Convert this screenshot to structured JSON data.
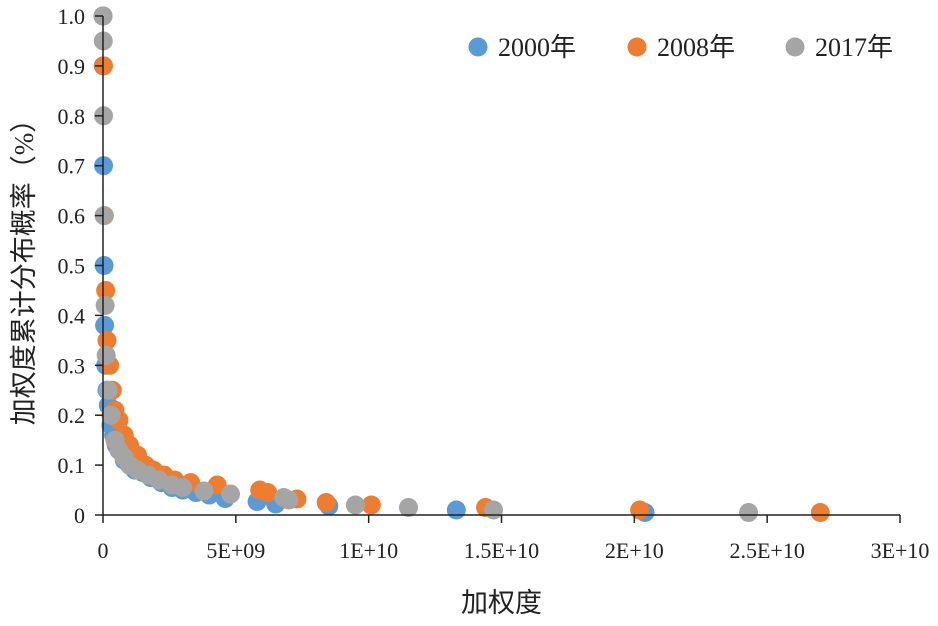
{
  "chart_data": {
    "type": "scatter",
    "xlabel": "加权度",
    "ylabel": "加权度累计分布概率（%）",
    "xlim": [
      0,
      30000000000
    ],
    "ylim": [
      0,
      1.0
    ],
    "xticks": [
      {
        "value": 0,
        "label": "0"
      },
      {
        "value": 5000000000,
        "label": "5E+09"
      },
      {
        "value": 10000000000,
        "label": "1E+10"
      },
      {
        "value": 15000000000,
        "label": "1.5E+10"
      },
      {
        "value": 20000000000,
        "label": "2E+10"
      },
      {
        "value": 25000000000,
        "label": "2.5E+10"
      },
      {
        "value": 30000000000,
        "label": "3E+10"
      }
    ],
    "yticks": [
      {
        "value": 0,
        "label": "0"
      },
      {
        "value": 0.1,
        "label": "0.1"
      },
      {
        "value": 0.2,
        "label": "0.2"
      },
      {
        "value": 0.3,
        "label": "0.3"
      },
      {
        "value": 0.4,
        "label": "0.4"
      },
      {
        "value": 0.5,
        "label": "0.5"
      },
      {
        "value": 0.6,
        "label": "0.6"
      },
      {
        "value": 0.7,
        "label": "0.7"
      },
      {
        "value": 0.8,
        "label": "0.8"
      },
      {
        "value": 0.9,
        "label": "0.9"
      },
      {
        "value": 1.0,
        "label": "1.0"
      }
    ],
    "legend_position": "top-right",
    "series": [
      {
        "name": "2000年",
        "color": "#5B9BD5",
        "points": [
          [
            0,
            1.0
          ],
          [
            10000000,
            0.9
          ],
          [
            20000000,
            0.7
          ],
          [
            40000000,
            0.5
          ],
          [
            60000000,
            0.38
          ],
          [
            100000000,
            0.3
          ],
          [
            150000000,
            0.25
          ],
          [
            200000000,
            0.22
          ],
          [
            300000000,
            0.18
          ],
          [
            400000000,
            0.16
          ],
          [
            500000000,
            0.14
          ],
          [
            600000000,
            0.13
          ],
          [
            800000000,
            0.11
          ],
          [
            1000000000,
            0.1
          ],
          [
            1200000000,
            0.09
          ],
          [
            1500000000,
            0.085
          ],
          [
            1800000000,
            0.075
          ],
          [
            2200000000,
            0.065
          ],
          [
            2600000000,
            0.055
          ],
          [
            3000000000,
            0.05
          ],
          [
            3500000000,
            0.045
          ],
          [
            4000000000,
            0.04
          ],
          [
            4600000000,
            0.033
          ],
          [
            5800000000,
            0.027
          ],
          [
            6500000000,
            0.022
          ],
          [
            8500000000,
            0.018
          ],
          [
            13300000000,
            0.01
          ],
          [
            20400000000,
            0.005
          ]
        ]
      },
      {
        "name": "2008年",
        "color": "#ED7D31",
        "points": [
          [
            0,
            1.0
          ],
          [
            20000000,
            0.9
          ],
          [
            50000000,
            0.6
          ],
          [
            100000000,
            0.45
          ],
          [
            150000000,
            0.35
          ],
          [
            250000000,
            0.3
          ],
          [
            350000000,
            0.25
          ],
          [
            450000000,
            0.21
          ],
          [
            600000000,
            0.19
          ],
          [
            800000000,
            0.16
          ],
          [
            1000000000,
            0.14
          ],
          [
            1300000000,
            0.12
          ],
          [
            1600000000,
            0.1
          ],
          [
            1900000000,
            0.09
          ],
          [
            2300000000,
            0.08
          ],
          [
            2700000000,
            0.07
          ],
          [
            3300000000,
            0.065
          ],
          [
            4300000000,
            0.06
          ],
          [
            5900000000,
            0.05
          ],
          [
            6200000000,
            0.045
          ],
          [
            7300000000,
            0.032
          ],
          [
            8400000000,
            0.025
          ],
          [
            10100000000,
            0.02
          ],
          [
            14400000000,
            0.015
          ],
          [
            20200000000,
            0.01
          ],
          [
            27000000000,
            0.005
          ]
        ]
      },
      {
        "name": "2017年",
        "color": "#A5A5A5",
        "points": [
          [
            0,
            1.0
          ],
          [
            10000000,
            0.95
          ],
          [
            20000000,
            0.8
          ],
          [
            40000000,
            0.6
          ],
          [
            80000000,
            0.42
          ],
          [
            120000000,
            0.32
          ],
          [
            200000000,
            0.25
          ],
          [
            300000000,
            0.2
          ],
          [
            450000000,
            0.15
          ],
          [
            600000000,
            0.13
          ],
          [
            800000000,
            0.115
          ],
          [
            1000000000,
            0.1
          ],
          [
            1300000000,
            0.09
          ],
          [
            1700000000,
            0.08
          ],
          [
            2100000000,
            0.07
          ],
          [
            2600000000,
            0.06
          ],
          [
            3000000000,
            0.055
          ],
          [
            3800000000,
            0.048
          ],
          [
            4800000000,
            0.042
          ],
          [
            6800000000,
            0.035
          ],
          [
            7000000000,
            0.03
          ],
          [
            9500000000,
            0.02
          ],
          [
            11500000000,
            0.015
          ],
          [
            14700000000,
            0.01
          ],
          [
            24300000000,
            0.005
          ]
        ]
      }
    ]
  }
}
